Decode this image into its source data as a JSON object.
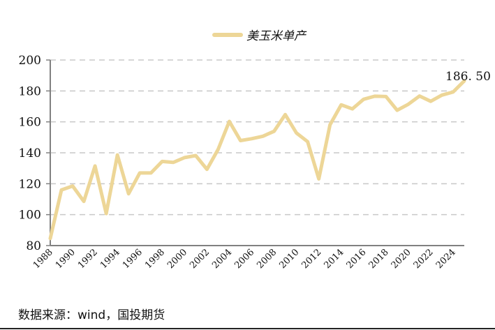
{
  "chart_data": {
    "type": "line",
    "title": "",
    "xlabel": "",
    "ylabel": "",
    "ylim": [
      80,
      200
    ],
    "yticks": [
      80,
      100,
      120,
      140,
      160,
      180,
      200
    ],
    "grid": "horizontal dashed",
    "legend_placement": "top-center",
    "x": [
      1988,
      1989,
      1990,
      1991,
      1992,
      1993,
      1994,
      1995,
      1996,
      1997,
      1998,
      1999,
      2000,
      2001,
      2002,
      2003,
      2004,
      2005,
      2006,
      2007,
      2008,
      2009,
      2010,
      2011,
      2012,
      2013,
      2014,
      2015,
      2016,
      2017,
      2018,
      2019,
      2020,
      2021,
      2022,
      2023,
      2024,
      2025
    ],
    "xtick_labels": [
      "1988",
      "1990",
      "1992",
      "1994",
      "1996",
      "1998",
      "2000",
      "2002",
      "2004",
      "2006",
      "2008",
      "2010",
      "2012",
      "2014",
      "2016",
      "2018",
      "2020",
      "2022",
      "2024"
    ],
    "series": [
      {
        "name": "美玉米单产",
        "color": "#EDD697",
        "values": [
          84.6,
          116.0,
          118.5,
          108.6,
          131.5,
          100.7,
          138.6,
          113.5,
          127.0,
          127.0,
          134.4,
          133.8,
          136.9,
          138.2,
          129.3,
          142.2,
          160.3,
          147.9,
          149.1,
          150.7,
          153.9,
          164.7,
          152.8,
          147.2,
          123.1,
          158.1,
          171.0,
          168.4,
          174.6,
          176.6,
          176.4,
          167.5,
          171.4,
          176.7,
          173.3,
          177.3,
          179.3,
          186.5
        ]
      }
    ],
    "annotations": [
      {
        "text": "186. 50",
        "x": 2025,
        "y": 186.5
      }
    ]
  },
  "footer": {
    "source": "数据来源：wind，国投期货"
  }
}
